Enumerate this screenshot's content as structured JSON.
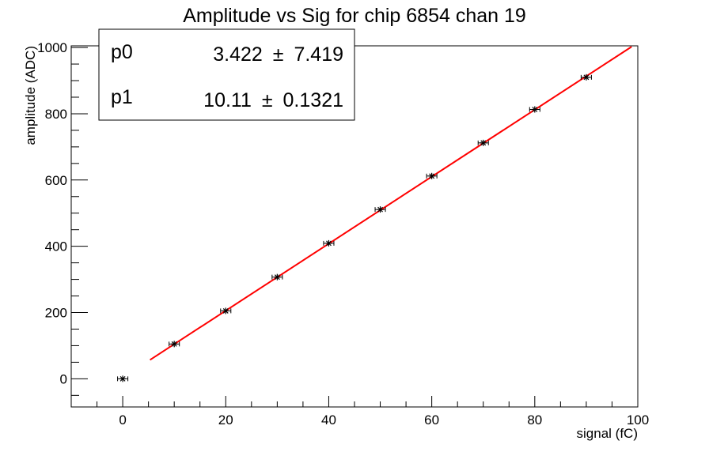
{
  "chart_data": {
    "type": "scatter",
    "title": "Amplitude vs Sig for chip 6854 chan 19",
    "xlabel": "signal (fC)",
    "ylabel": "amplitude (ADC)",
    "xlim": [
      -10,
      100
    ],
    "ylim": [
      -85,
      1005
    ],
    "x_ticks": [
      "0",
      "20",
      "40",
      "60",
      "80",
      "100"
    ],
    "y_ticks": [
      "0",
      "200",
      "400",
      "600",
      "800",
      "1000"
    ],
    "grid": false,
    "series": [
      {
        "x": [
          0,
          10,
          20,
          30,
          40,
          50,
          60,
          70,
          80,
          90
        ],
        "y": [
          0,
          105,
          205,
          307,
          409,
          511,
          612,
          712,
          813,
          910
        ],
        "x_error": 1,
        "y_error": 2,
        "marker": "star",
        "color": "#000000"
      }
    ],
    "fit": {
      "p0": 3.422,
      "p1": 10.11,
      "x_range": [
        5.3,
        98.8
      ],
      "color": "#ff0000"
    },
    "stats_box": {
      "rows": [
        {
          "name": "p0",
          "value": "3.422",
          "pm": "±",
          "error": "7.419"
        },
        {
          "name": "p1",
          "value": "10.11",
          "pm": "±",
          "error": "0.1321"
        }
      ]
    }
  }
}
